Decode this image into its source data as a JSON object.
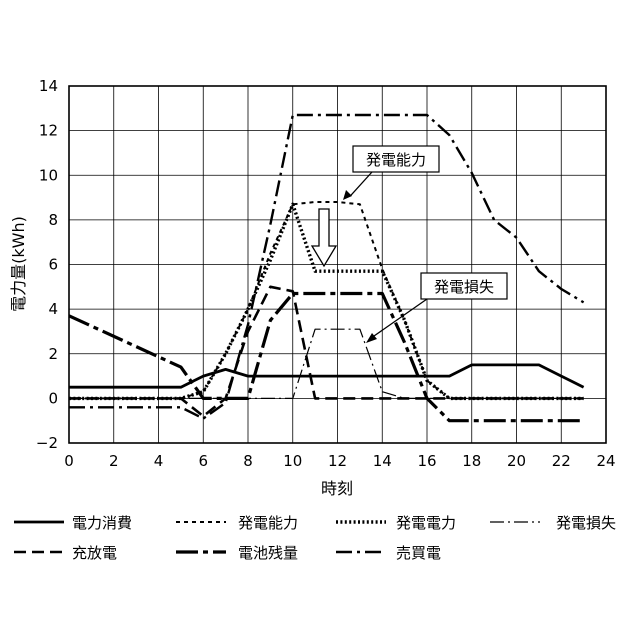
{
  "chart_data": {
    "type": "line",
    "xlabel": "時刻",
    "ylabel": "電力量(kWh)",
    "xlim": [
      0,
      24
    ],
    "ylim": [
      -2,
      14
    ],
    "xticks": [
      0,
      2,
      4,
      6,
      8,
      10,
      12,
      14,
      16,
      18,
      20,
      22,
      24
    ],
    "yticks": [
      -2,
      0,
      2,
      4,
      6,
      8,
      10,
      12,
      14
    ],
    "grid": true,
    "legend_position": "bottom",
    "series": [
      {
        "name": "電力消費",
        "style": "solid",
        "color": "#000000",
        "x": [
          0,
          5,
          6,
          7,
          8,
          16,
          17,
          18,
          19,
          20,
          21,
          22,
          23
        ],
        "y": [
          0.5,
          0.5,
          1.0,
          1.3,
          1.0,
          1.0,
          1.0,
          1.5,
          1.5,
          1.5,
          1.5,
          1.0,
          0.5
        ]
      },
      {
        "name": "発電能力",
        "style": "dashed-fine",
        "color": "#000000",
        "x": [
          0,
          5,
          6,
          7,
          8,
          9,
          10,
          11,
          12,
          13,
          14,
          15,
          16,
          17,
          23
        ],
        "y": [
          0,
          0,
          0.3,
          2.0,
          4.0,
          6.5,
          8.7,
          8.8,
          8.8,
          8.7,
          5.8,
          3.5,
          0.8,
          0,
          0
        ]
      },
      {
        "name": "発電電力",
        "style": "dotted",
        "color": "#000000",
        "x": [
          0,
          5,
          6,
          7,
          8,
          9,
          10,
          11,
          12,
          13,
          14,
          15,
          16,
          17,
          23
        ],
        "y": [
          0,
          0,
          0.3,
          2.0,
          4.0,
          6.2,
          8.7,
          5.7,
          5.7,
          5.7,
          5.7,
          3.5,
          0.8,
          0,
          0
        ]
      },
      {
        "name": "発電損失",
        "style": "dashdot-thin",
        "color": "#000000",
        "x": [
          0,
          10,
          11,
          12,
          13,
          14,
          15,
          23
        ],
        "y": [
          0,
          0,
          3.1,
          3.1,
          3.1,
          0.3,
          0,
          0
        ]
      },
      {
        "name": "充放電",
        "style": "dashed",
        "color": "#000000",
        "x": [
          0,
          5,
          6,
          7,
          8,
          9,
          10,
          11,
          15,
          16,
          17,
          18,
          21,
          22,
          23
        ],
        "y": [
          0,
          0,
          -0.8,
          0,
          3.0,
          5.0,
          4.8,
          0,
          0,
          0,
          0,
          0,
          0,
          0,
          0
        ]
      },
      {
        "name": "電池残量",
        "style": "dashdot-thick",
        "color": "#000000",
        "x": [
          0,
          5,
          6,
          7,
          8,
          9,
          10,
          14,
          15,
          16,
          17,
          23
        ],
        "y": [
          3.7,
          1.4,
          0,
          0,
          0,
          3.5,
          4.7,
          4.7,
          2.5,
          0,
          -1.0,
          -1.0
        ]
      },
      {
        "name": "売買電",
        "style": "dashdot",
        "color": "#000000",
        "x": [
          0,
          5,
          6,
          7,
          8,
          9,
          10,
          16,
          17,
          18,
          19,
          20,
          21,
          22,
          23
        ],
        "y": [
          -0.4,
          -0.4,
          -0.9,
          -0.2,
          3.3,
          7.8,
          12.7,
          12.7,
          11.8,
          10.1,
          8.0,
          7.2,
          5.7,
          4.9,
          4.3
        ]
      }
    ],
    "annotations": [
      {
        "text": "発電能力",
        "points_to": [
          12.3,
          8.8
        ]
      },
      {
        "text": "発電損失",
        "points_to": [
          13.2,
          2.5
        ]
      }
    ]
  }
}
